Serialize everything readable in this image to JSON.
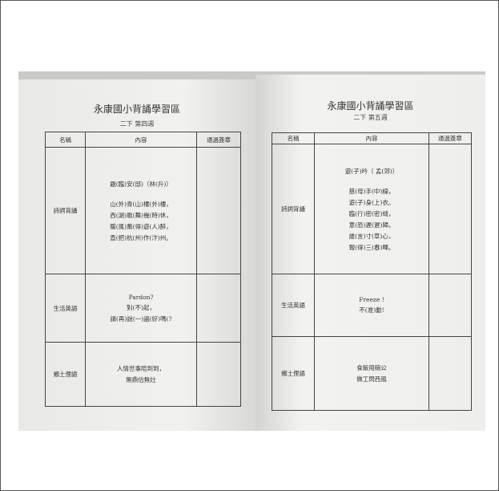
{
  "left_page": {
    "title": "永康國小背誦學習區",
    "subtitle": "二下 第四週",
    "table": {
      "header": [
        "名稱",
        "內容",
        "通過簽章"
      ],
      "rows": [
        {
          "name": "詩詞背誦",
          "content": [
            "題(臨)安(邸)（林(升)）",
            "山(外)青(山)樓(外)樓，",
            "西(湖)歌(舞)幾(時)休，",
            "暖(風)薰(得)遊(人)醉，",
            "直(把)杭(州)作(汴)州。"
          ]
        },
        {
          "name": "生活英語",
          "content": [
            "Pardon?",
            "對(不)起，",
            "請(再)說(一)遍(好)嗎(?"
          ]
        },
        {
          "name": "鄉土俚語",
          "content": [
            "人情世事陪到到，",
            "無鼎佮無灶"
          ]
        }
      ]
    }
  },
  "right_page": {
    "title": "永康國小背誦學習區",
    "subtitle": "二下 第五週",
    "table": {
      "header": [
        "名稱",
        "內容",
        "通過簽章"
      ],
      "rows": [
        {
          "name": "詩詞背誦",
          "content": [
            "遊(子)吟（ 孟(郊)）",
            "慈(母)手(中)線，",
            "遊(子)身(上)衣。",
            "臨(行)密(密)縫，",
            "意(恐)遲(遲)歸。",
            "誰(言)寸(草)心，",
            "報(得)三(春)暉。"
          ]
        },
        {
          "name": "生活英語",
          "content": [
            "Freeze !",
            "不(准)動!"
          ]
        },
        {
          "name": "鄉土俚語",
          "content": [
            "食飯用碗公",
            "做工閃西風"
          ]
        }
      ]
    }
  }
}
